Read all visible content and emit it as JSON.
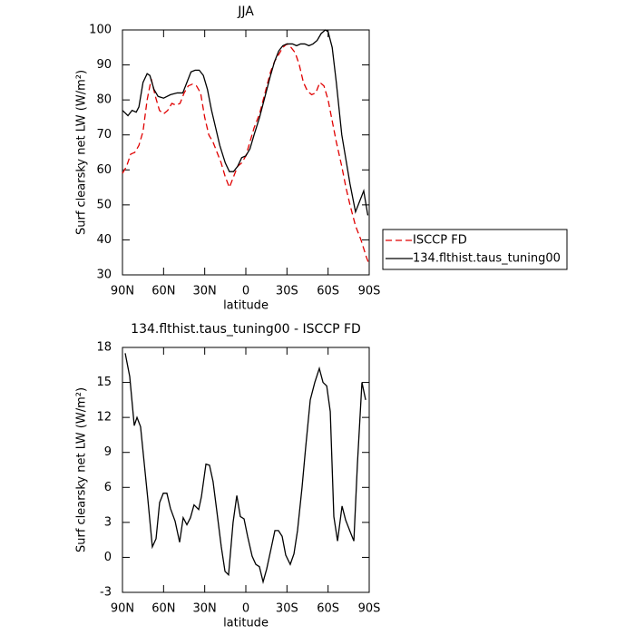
{
  "chart_data": [
    {
      "type": "line",
      "title": "JJA",
      "xlabel": "latitude",
      "ylabel": "Surf clearsky net LW (W/m²)",
      "xlim": [
        90,
        -90
      ],
      "xticks": [
        {
          "value": 90,
          "label": "90N"
        },
        {
          "value": 60,
          "label": "60N"
        },
        {
          "value": 30,
          "label": "30N"
        },
        0,
        {
          "value": -30,
          "label": "30S"
        },
        {
          "value": -60,
          "label": "60S"
        },
        {
          "value": -90,
          "label": "90S"
        }
      ],
      "ylim": [
        30,
        100
      ],
      "yticks": [
        30,
        40,
        50,
        60,
        70,
        80,
        90,
        100
      ],
      "legend": "right",
      "series": [
        {
          "name": "ISCCP FD",
          "color": "#e00000",
          "dashed": true,
          "x": [
            90,
            87,
            84,
            81,
            78,
            75,
            72,
            69,
            66,
            63,
            60,
            57,
            54,
            51,
            48,
            45,
            42,
            39,
            36,
            33,
            30,
            27,
            24,
            21,
            18,
            15,
            12,
            9,
            6,
            3,
            0,
            -3,
            -6,
            -10,
            -14,
            -18,
            -21,
            -24,
            -27,
            -30,
            -33,
            -36,
            -39,
            -42,
            -45,
            -48,
            -51,
            -54,
            -57,
            -60,
            -63,
            -66,
            -70,
            -73,
            -76,
            -80,
            -84,
            -88,
            -90
          ],
          "values": [
            59,
            61,
            64.5,
            65,
            67,
            71,
            80,
            86,
            81,
            77,
            76,
            77,
            79,
            78.5,
            79,
            82,
            84,
            84.5,
            84,
            82,
            75,
            70,
            68,
            65,
            62,
            58,
            55,
            58,
            61,
            62,
            64,
            68,
            72,
            76,
            82,
            88,
            91,
            93,
            95,
            96,
            95,
            93.5,
            90,
            85,
            82.5,
            81.5,
            82,
            85,
            84,
            80,
            74,
            68,
            61,
            55,
            50,
            44,
            40,
            35,
            33
          ]
        },
        {
          "name": "134.flthist.taus_tuning00",
          "color": "#000000",
          "dashed": false,
          "x": [
            90,
            86,
            83,
            80,
            78,
            75,
            72,
            70,
            67,
            64,
            60,
            55,
            50,
            46,
            43,
            40,
            37,
            34,
            31,
            28,
            25,
            22,
            19,
            15,
            12,
            9,
            6,
            3,
            0,
            -3,
            -6,
            -10,
            -14,
            -18,
            -21,
            -24,
            -27,
            -30,
            -34,
            -37,
            -40,
            -43,
            -46,
            -49,
            -52,
            -55,
            -58,
            -60,
            -63,
            -66,
            -70,
            -73,
            -76,
            -80,
            -83,
            -86,
            -89
          ],
          "values": [
            77,
            75.5,
            77,
            76.5,
            78,
            85,
            87.5,
            87,
            83,
            81,
            80.5,
            81.5,
            82,
            82,
            85,
            88,
            88.5,
            88.5,
            87,
            83,
            77,
            72,
            67,
            62,
            59.5,
            59.5,
            61,
            63.5,
            64,
            66,
            70,
            75,
            81,
            87,
            91,
            94,
            95.5,
            96,
            96,
            95.5,
            96,
            96,
            95.5,
            96,
            97,
            99,
            100,
            99.5,
            95,
            85,
            70,
            63,
            56,
            48,
            51,
            54,
            47
          ]
        }
      ]
    },
    {
      "type": "line",
      "title": "134.flthist.taus_tuning00 - ISCCP FD",
      "xlabel": "latitude",
      "ylabel": "Surf clearsky net LW (W/m²)",
      "xlim": [
        90,
        -90
      ],
      "xticks": [
        {
          "value": 90,
          "label": "90N"
        },
        {
          "value": 60,
          "label": "60N"
        },
        {
          "value": 30,
          "label": "30N"
        },
        0,
        {
          "value": -30,
          "label": "30S"
        },
        {
          "value": -60,
          "label": "60S"
        },
        {
          "value": -90,
          "label": "90S"
        }
      ],
      "ylim": [
        -3,
        18
      ],
      "yticks": [
        -3,
        0,
        3,
        6,
        9,
        12,
        15,
        18
      ],
      "color": "#000000",
      "x": [
        88,
        84.7,
        81.4,
        79.4,
        76.8,
        71.5,
        68.2,
        65.5,
        62.9,
        60.2,
        57.6,
        55,
        51.6,
        48.3,
        45.7,
        43,
        40.4,
        37.8,
        34.4,
        32.4,
        29.1,
        26.5,
        23.9,
        21.2,
        17.9,
        15.2,
        12.6,
        9.3,
        6.6,
        4,
        1.3,
        -1.3,
        -4.6,
        -7.3,
        -9.9,
        -12.6,
        -15.2,
        -18.5,
        -21.2,
        -23.8,
        -26.5,
        -29.1,
        -32.4,
        -35.1,
        -37.7,
        -41,
        -43.7,
        -47,
        -50.3,
        -53.6,
        -56.3,
        -59,
        -61.6,
        -64.2,
        -66.9,
        -70.2,
        -72.8,
        -76.1,
        -78.8,
        -81.4,
        -84.7,
        -87.4
      ],
      "values": [
        17.5,
        15.5,
        11.3,
        12,
        11.2,
        5,
        0.9,
        1.6,
        4.7,
        5.5,
        5.5,
        4.2,
        3.1,
        1.3,
        3.4,
        2.8,
        3.4,
        4.5,
        4.1,
        5.2,
        8,
        7.9,
        6.5,
        4,
        0.9,
        -1.2,
        -1.5,
        3,
        5.3,
        3.5,
        3.3,
        1.8,
        0.1,
        -0.6,
        -0.8,
        -2.1,
        -1,
        0.8,
        2.3,
        2.3,
        1.8,
        0.2,
        -0.6,
        0.3,
        2.3,
        6,
        9.5,
        13.5,
        15,
        16.2,
        15,
        14.7,
        12.5,
        3.5,
        1.4,
        4.4,
        3.2,
        2.2,
        1.4,
        8,
        15,
        13.5
      ]
    }
  ]
}
